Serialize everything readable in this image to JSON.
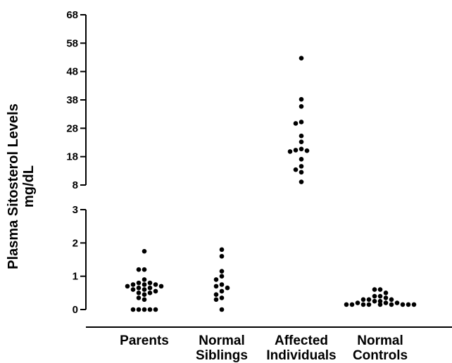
{
  "chart_data": {
    "type": "scatter",
    "title": "",
    "ylabel_lines": [
      "Plasma Sitosterol Levels",
      "mg/dL"
    ],
    "xlabel": "",
    "y_scale": "broken",
    "y_axis_segments": [
      {
        "range": [
          0,
          3
        ],
        "ticks": [
          0,
          1,
          2,
          3
        ]
      },
      {
        "range": [
          8,
          68
        ],
        "ticks": [
          8,
          18,
          28,
          38,
          48,
          58,
          68
        ]
      }
    ],
    "grid": false,
    "legend": "none",
    "categories": [
      {
        "label_lines": [
          "Parents"
        ],
        "values": [
          1.75,
          1.2,
          1.2,
          0.9,
          0.8,
          0.8,
          0.75,
          0.75,
          0.75,
          0.7,
          0.7,
          0.65,
          0.65,
          0.6,
          0.6,
          0.55,
          0.5,
          0.5,
          0.45,
          0.35,
          0.3,
          0,
          0,
          0,
          0,
          0
        ]
      },
      {
        "label_lines": [
          "Normal",
          "Siblings"
        ],
        "values": [
          1.8,
          1.6,
          1.15,
          1.0,
          0.9,
          0.75,
          0.7,
          0.65,
          0.55,
          0.45,
          0.35,
          0.3,
          0
        ]
      },
      {
        "label_lines": [
          "Affected",
          "Individuals"
        ],
        "values": [
          52.7,
          38.2,
          35.7,
          30.2,
          29.7,
          25.3,
          23.2,
          20.7,
          20.3,
          20.1,
          19.8,
          17.1,
          14.6,
          13.4,
          12.5,
          9.1
        ]
      },
      {
        "label_lines": [
          "Normal",
          "Controls"
        ],
        "values": [
          0.6,
          0.6,
          0.5,
          0.4,
          0.4,
          0.35,
          0.3,
          0.3,
          0.3,
          0.25,
          0.25,
          0.2,
          0.2,
          0.2,
          0.15,
          0.15,
          0.15,
          0.15,
          0.15,
          0.15,
          0.15,
          0.15,
          0.15
        ]
      }
    ]
  }
}
